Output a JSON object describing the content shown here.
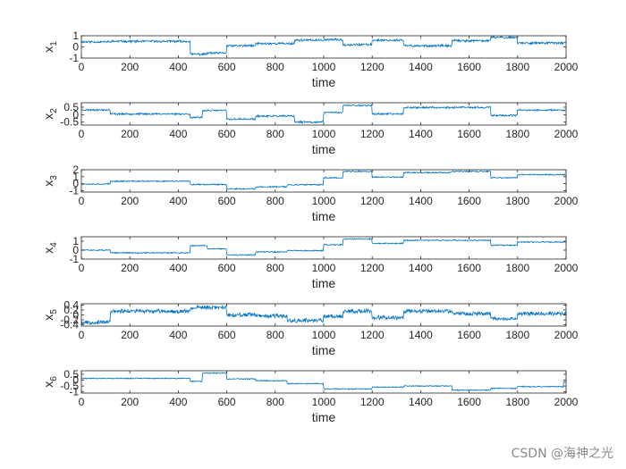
{
  "watermark": "CSDN @海神之光",
  "chart_data": [
    {
      "type": "line",
      "ylabel_base": "x",
      "ylabel_sub": "1",
      "xlabel": "time",
      "xlim": [
        0,
        2000
      ],
      "ylim": [
        -1,
        1
      ],
      "xticks": [
        0,
        200,
        400,
        600,
        800,
        1000,
        1200,
        1400,
        1600,
        1800,
        2000
      ],
      "yticks": [
        -1,
        0,
        1
      ],
      "color": "#0072BD",
      "noise": 0.09,
      "seed": 11,
      "segments": [
        [
          0,
          120,
          0.45
        ],
        [
          120,
          450,
          0.5
        ],
        [
          450,
          520,
          -0.65
        ],
        [
          520,
          600,
          -0.55
        ],
        [
          600,
          720,
          0.1
        ],
        [
          720,
          880,
          0.3
        ],
        [
          880,
          1000,
          0.6
        ],
        [
          1000,
          1080,
          0.65
        ],
        [
          1080,
          1200,
          0.2
        ],
        [
          1200,
          1330,
          0.6
        ],
        [
          1330,
          1530,
          0.1
        ],
        [
          1530,
          1690,
          0.55
        ],
        [
          1690,
          1800,
          0.85
        ],
        [
          1800,
          2000,
          0.35
        ]
      ]
    },
    {
      "type": "line",
      "ylabel_base": "x",
      "ylabel_sub": "2",
      "xlabel": "time",
      "xlim": [
        0,
        2000
      ],
      "ylim": [
        -0.7,
        0.8
      ],
      "xticks": [
        0,
        200,
        400,
        600,
        800,
        1000,
        1200,
        1400,
        1600,
        1800,
        2000
      ],
      "yticks": [
        -0.5,
        0,
        0.5
      ],
      "yticklabels": [
        "-0.5",
        "0",
        "0.5"
      ],
      "color": "#0072BD",
      "noise": 0.055,
      "seed": 23,
      "segments": [
        [
          0,
          120,
          0.32
        ],
        [
          120,
          450,
          0.05
        ],
        [
          450,
          500,
          -0.2
        ],
        [
          500,
          600,
          0.28
        ],
        [
          600,
          720,
          -0.3
        ],
        [
          720,
          880,
          -0.1
        ],
        [
          880,
          1000,
          -0.5
        ],
        [
          1000,
          1080,
          0.15
        ],
        [
          1080,
          1200,
          0.62
        ],
        [
          1200,
          1330,
          0.05
        ],
        [
          1330,
          1690,
          0.48
        ],
        [
          1690,
          1800,
          -0.05
        ],
        [
          1800,
          2000,
          0.3
        ]
      ]
    },
    {
      "type": "line",
      "ylabel_base": "x",
      "ylabel_sub": "3",
      "xlabel": "time",
      "xlim": [
        0,
        2000
      ],
      "ylim": [
        -1.2,
        2
      ],
      "xticks": [
        0,
        200,
        400,
        600,
        800,
        1000,
        1200,
        1400,
        1600,
        1800,
        2000
      ],
      "yticks": [
        -1,
        0,
        1,
        2
      ],
      "color": "#0072BD",
      "noise": 0.08,
      "seed": 37,
      "segments": [
        [
          0,
          120,
          -0.05
        ],
        [
          120,
          450,
          0.35
        ],
        [
          450,
          600,
          -0.1
        ],
        [
          600,
          720,
          -0.75
        ],
        [
          720,
          850,
          -0.45
        ],
        [
          850,
          1000,
          -0.15
        ],
        [
          1000,
          1080,
          0.85
        ],
        [
          1080,
          1200,
          1.75
        ],
        [
          1200,
          1330,
          0.95
        ],
        [
          1330,
          1530,
          1.6
        ],
        [
          1530,
          1690,
          1.75
        ],
        [
          1690,
          1800,
          0.85
        ],
        [
          1800,
          2000,
          1.3
        ]
      ]
    },
    {
      "type": "line",
      "ylabel_base": "x",
      "ylabel_sub": "4",
      "xlabel": "time",
      "xlim": [
        0,
        2000
      ],
      "ylim": [
        -1,
        1.5
      ],
      "xticks": [
        0,
        200,
        400,
        600,
        800,
        1000,
        1200,
        1400,
        1600,
        1800,
        2000
      ],
      "yticks": [
        -1,
        0,
        1
      ],
      "color": "#0072BD",
      "noise": 0.06,
      "seed": 51,
      "segments": [
        [
          0,
          120,
          0.0
        ],
        [
          120,
          450,
          -0.3
        ],
        [
          450,
          520,
          0.5
        ],
        [
          520,
          600,
          0.15
        ],
        [
          600,
          720,
          -0.55
        ],
        [
          720,
          850,
          -0.2
        ],
        [
          850,
          1000,
          -0.05
        ],
        [
          1000,
          1080,
          0.6
        ],
        [
          1080,
          1200,
          1.25
        ],
        [
          1200,
          1330,
          0.75
        ],
        [
          1330,
          1690,
          1.1
        ],
        [
          1690,
          1800,
          0.55
        ],
        [
          1800,
          2000,
          0.9
        ]
      ]
    },
    {
      "type": "line",
      "ylabel_base": "x",
      "ylabel_sub": "5",
      "xlabel": "time",
      "xlim": [
        0,
        2000
      ],
      "ylim": [
        -0.45,
        0.45
      ],
      "xticks": [
        0,
        200,
        400,
        600,
        800,
        1000,
        1200,
        1400,
        1600,
        1800,
        2000
      ],
      "yticks": [
        -0.4,
        -0.2,
        0,
        0.2,
        0.4
      ],
      "yticklabels": [
        "-0.4",
        "-0.2",
        "0",
        "0.2",
        "0.4"
      ],
      "color": "#0072BD",
      "noise": 0.07,
      "seed": 67,
      "segments": [
        [
          0,
          120,
          -0.3
        ],
        [
          120,
          450,
          0.15
        ],
        [
          450,
          600,
          0.3
        ],
        [
          600,
          720,
          0.0
        ],
        [
          720,
          850,
          -0.05
        ],
        [
          850,
          1000,
          -0.22
        ],
        [
          1000,
          1080,
          -0.05
        ],
        [
          1080,
          1200,
          0.15
        ],
        [
          1200,
          1330,
          -0.1
        ],
        [
          1330,
          1530,
          0.15
        ],
        [
          1530,
          1690,
          0.05
        ],
        [
          1690,
          1800,
          -0.15
        ],
        [
          1800,
          2000,
          0.05
        ]
      ]
    },
    {
      "type": "line",
      "ylabel_base": "x",
      "ylabel_sub": "6",
      "xlabel": "time",
      "xlim": [
        0,
        2000
      ],
      "ylim": [
        -1.1,
        0.8
      ],
      "xticks": [
        0,
        200,
        400,
        600,
        800,
        1000,
        1200,
        1400,
        1600,
        1800,
        2000
      ],
      "yticks": [
        -1,
        -0.5,
        0,
        0.5
      ],
      "yticklabels": [
        "-1",
        "-0.5",
        "0",
        "0.5"
      ],
      "color": "#0072BD",
      "noise": 0.04,
      "seed": 79,
      "segments": [
        [
          0,
          450,
          0.15
        ],
        [
          450,
          500,
          -0.1
        ],
        [
          500,
          600,
          0.6
        ],
        [
          600,
          720,
          0.1
        ],
        [
          720,
          850,
          -0.05
        ],
        [
          850,
          1000,
          -0.3
        ],
        [
          1000,
          1200,
          -0.75
        ],
        [
          1200,
          1330,
          -0.6
        ],
        [
          1330,
          1530,
          -0.5
        ],
        [
          1530,
          1690,
          -0.85
        ],
        [
          1690,
          1800,
          -0.7
        ],
        [
          1800,
          1990,
          -0.55
        ],
        [
          1990,
          2000,
          -0.15
        ]
      ]
    }
  ]
}
